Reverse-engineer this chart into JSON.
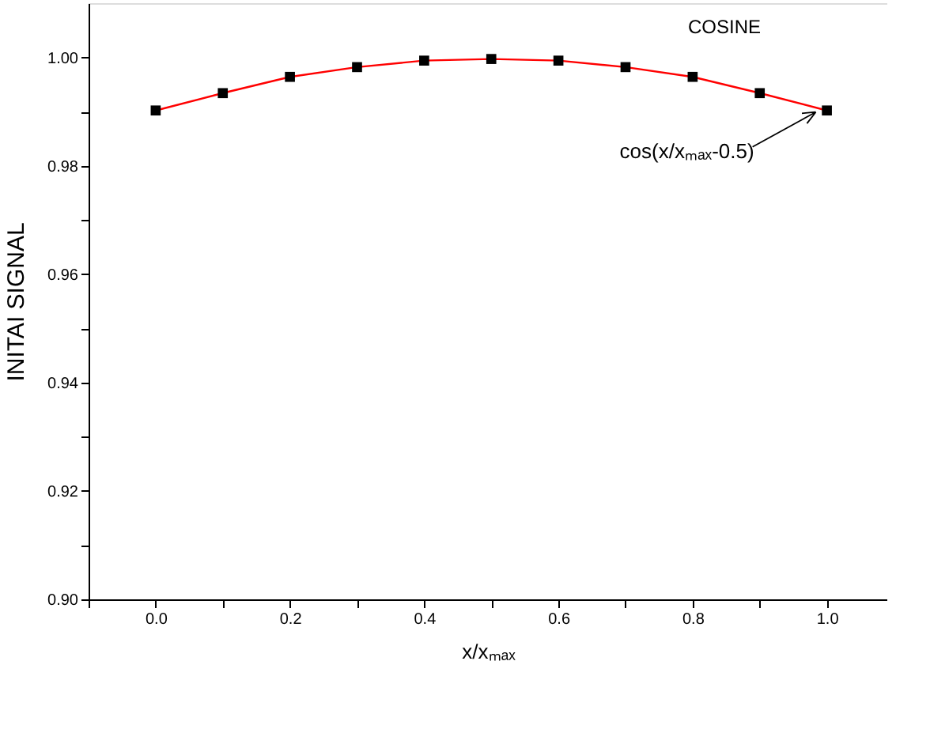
{
  "chart_data": {
    "type": "line",
    "title": "COSINE",
    "xlabel": "x/xₘₐₓ",
    "ylabel": "INITAI SIGNAL",
    "x": [
      0.0,
      0.1,
      0.2,
      0.3,
      0.4,
      0.5,
      0.6,
      0.7,
      0.8,
      0.9,
      1.0
    ],
    "series": [
      {
        "color": "#ff0000",
        "marker": "none",
        "values": [
          0.9902,
          0.9934,
          0.9964,
          0.9982,
          0.9994,
          0.9997,
          0.9994,
          0.9982,
          0.9964,
          0.9934,
          0.9902
        ]
      },
      {
        "type": "scatter",
        "color": "#000000",
        "marker": "square",
        "values": [
          0.9902,
          0.9934,
          0.9964,
          0.9982,
          0.9994,
          0.9997,
          0.9994,
          0.9982,
          0.9964,
          0.9934,
          0.9902
        ]
      }
    ],
    "xlim": [
      -0.1,
      1.09
    ],
    "ylim": [
      0.9,
      1.01
    ],
    "xticks": [
      {
        "value": -0.1,
        "label": null
      },
      {
        "value": 0.0,
        "label": "0.0"
      },
      {
        "value": 0.1,
        "label": null
      },
      {
        "value": 0.2,
        "label": "0.2"
      },
      {
        "value": 0.3,
        "label": null
      },
      {
        "value": 0.4,
        "label": "0.4"
      },
      {
        "value": 0.5,
        "label": null
      },
      {
        "value": 0.6,
        "label": "0.6"
      },
      {
        "value": 0.7,
        "label": null
      },
      {
        "value": 0.8,
        "label": "0.8"
      },
      {
        "value": 0.9,
        "label": null
      },
      {
        "value": 1.0,
        "label": "1.0"
      }
    ],
    "yticks": [
      {
        "value": 0.9,
        "label": "0.90"
      },
      {
        "value": 0.91,
        "label": null
      },
      {
        "value": 0.92,
        "label": "0.92"
      },
      {
        "value": 0.93,
        "label": null
      },
      {
        "value": 0.94,
        "label": "0.94"
      },
      {
        "value": 0.95,
        "label": null
      },
      {
        "value": 0.96,
        "label": "0.96"
      },
      {
        "value": 0.97,
        "label": null
      },
      {
        "value": 0.98,
        "label": "0.98"
      },
      {
        "value": 0.99,
        "label": null
      },
      {
        "value": 1.0,
        "label": "1.00"
      }
    ],
    "annotations": [
      {
        "text": "cos(x/xₘₐₓ-0.5)",
        "x": 1.0,
        "y": 0.9902
      }
    ],
    "grid": false
  }
}
